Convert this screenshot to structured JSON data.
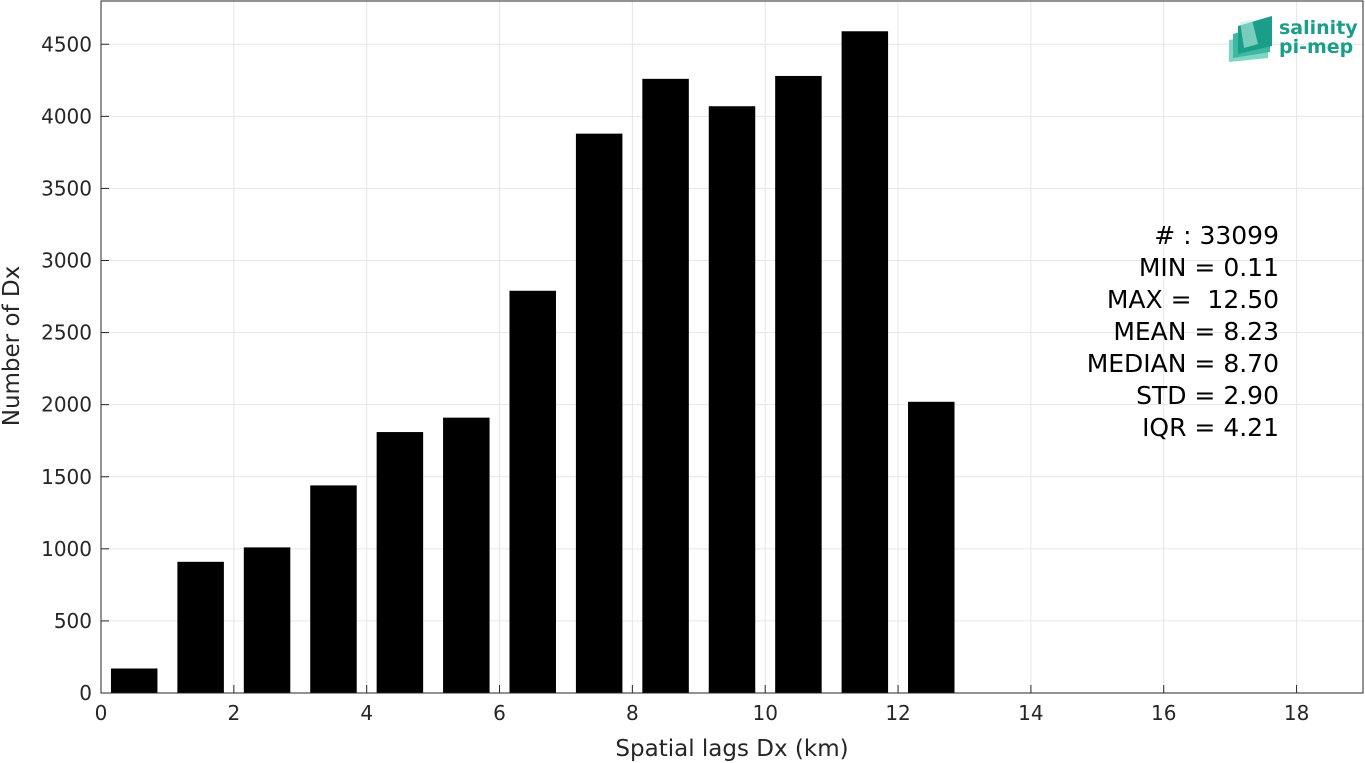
{
  "chart_data": {
    "type": "bar",
    "title": "",
    "xlabel": "Spatial lags Dx (km)",
    "ylabel": "Number of Dx",
    "xlim": [
      0,
      19
    ],
    "ylim": [
      0,
      4800
    ],
    "x_ticks": [
      0,
      2,
      4,
      6,
      8,
      10,
      12,
      14,
      16,
      18
    ],
    "y_ticks": [
      0,
      500,
      1000,
      1500,
      2000,
      2500,
      3000,
      3500,
      4000,
      4500
    ],
    "x": [
      0.5,
      1.5,
      2.5,
      3.5,
      4.5,
      5.5,
      6.5,
      7.5,
      8.5,
      9.5,
      10.5,
      11.5,
      12.5
    ],
    "values": [
      170,
      910,
      1010,
      1440,
      1810,
      1910,
      2790,
      3880,
      4260,
      4070,
      4280,
      4590,
      2020
    ],
    "bar_width": 0.7,
    "grid": true,
    "bar_color": "#000000",
    "annotation_lines": [
      "# : 33099",
      "MIN = 0.11",
      "MAX =  12.50",
      "MEAN = 8.23",
      "MEDIAN = 8.70",
      "STD = 2.90",
      "IQR = 4.21"
    ]
  },
  "logo": {
    "line1": "salinity",
    "line2": "pi-mep",
    "color": "#1a9e8a"
  }
}
